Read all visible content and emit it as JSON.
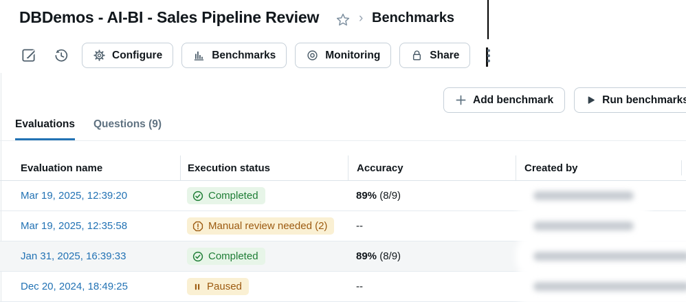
{
  "header": {
    "title": "DBDemos - AI-BI - Sales Pipeline Review",
    "star_icon": "star-outline-icon",
    "breadcrumb_separator": "›",
    "breadcrumb_current": "Benchmarks"
  },
  "toolbar": {
    "edit_icon": "edit-pencil-square-icon",
    "history_icon": "version-history-clock-icon",
    "buttons": [
      {
        "label": "Configure",
        "icon": "gear-icon"
      },
      {
        "label": "Benchmarks",
        "icon": "bar-chart-icon"
      },
      {
        "label": "Monitoring",
        "icon": "eye-icon"
      },
      {
        "label": "Share",
        "icon": "lock-icon"
      }
    ],
    "kebab_icon": "kebab-menu-icon"
  },
  "actions": {
    "add_benchmark_label": "Add benchmark",
    "add_icon": "plus-icon",
    "run_benchmarks_label": "Run benchmarks",
    "run_icon": "play-icon"
  },
  "tabs": [
    {
      "label": "Evaluations",
      "active": true
    },
    {
      "label": "Questions (9)",
      "active": false
    }
  ],
  "table": {
    "columns": [
      "Evaluation name",
      "Execution status",
      "Accuracy",
      "Created by"
    ],
    "rows": [
      {
        "name": "Mar 19, 2025, 12:39:20",
        "status": "Completed",
        "status_type": "success",
        "status_icon": "check-circle-icon",
        "accuracy_strong": "89%",
        "accuracy_rest": " (8/9)",
        "created_by_redacted": "short",
        "highlighted": false
      },
      {
        "name": "Mar 19, 2025, 12:35:58",
        "status": "Manual review needed (2)",
        "status_type": "warning",
        "status_icon": "alert-octagon-icon",
        "accuracy_strong": "",
        "accuracy_rest": "--",
        "created_by_redacted": "short",
        "highlighted": false
      },
      {
        "name": "Jan 31, 2025, 16:39:33",
        "status": "Completed",
        "status_type": "success",
        "status_icon": "check-circle-icon",
        "accuracy_strong": "89%",
        "accuracy_rest": " (8/9)",
        "created_by_redacted": "long",
        "highlighted": true
      },
      {
        "name": "Dec 20, 2024, 18:49:25",
        "status": "Paused",
        "status_type": "paused",
        "status_icon": "pause-icon",
        "accuracy_strong": "",
        "accuracy_rest": "--",
        "created_by_redacted": "long",
        "highlighted": false
      }
    ]
  },
  "colors": {
    "accent_blue": "#2272B4",
    "link_blue": "#2272B4",
    "success_text": "#1E7D35",
    "success_bg": "#E7F5E8",
    "warning_text": "#9C5A10",
    "warning_bg": "#FAF0D3",
    "text_dark": "#11171C",
    "text_gray": "#5F7281",
    "button_border": "#C5CFD8",
    "row_divider": "#E5EBF0"
  }
}
